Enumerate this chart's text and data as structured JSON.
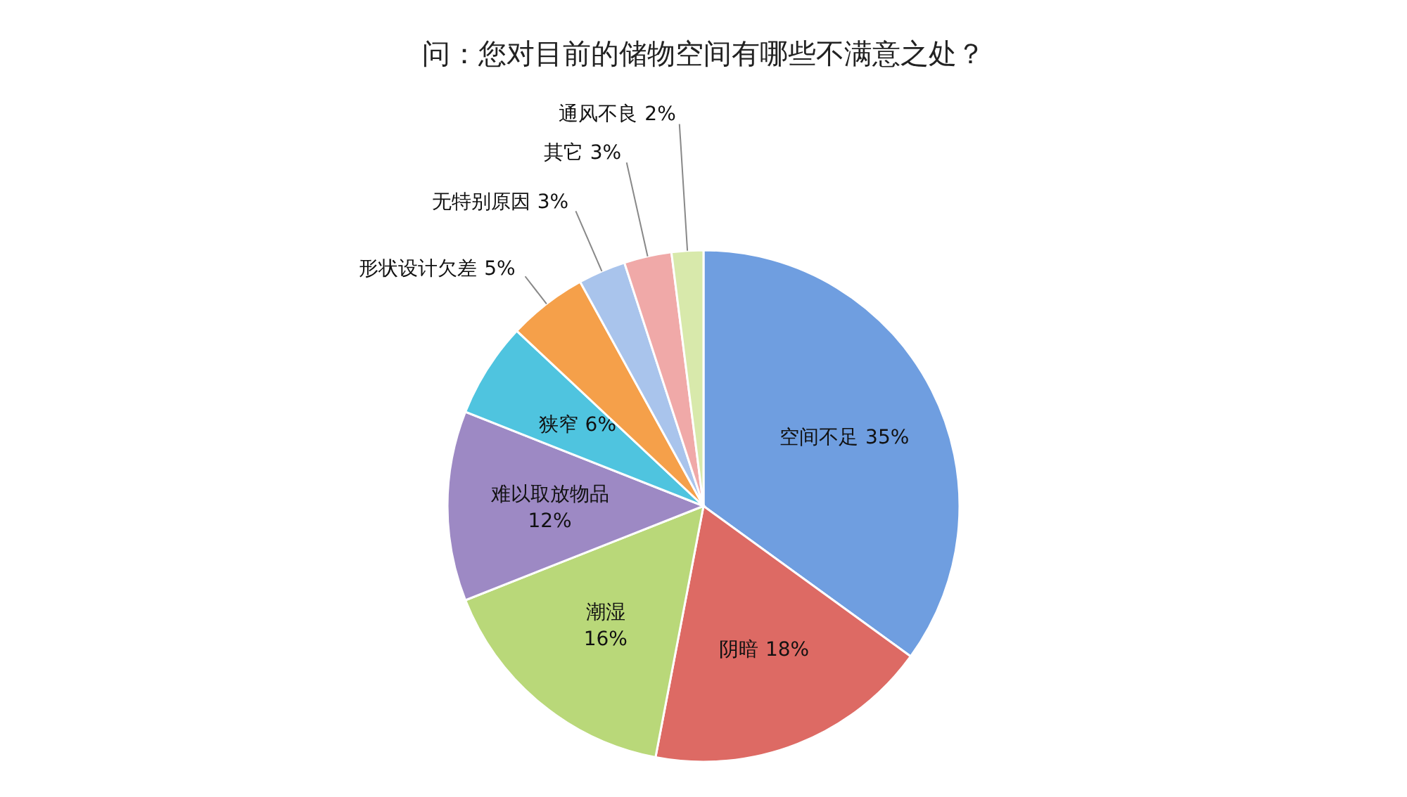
{
  "chart_data": {
    "type": "pie",
    "title": "问：您对目前的储物空间有哪些不满意之处？",
    "categories": [
      "空间不足",
      "阴暗",
      "潮湿",
      "难以取放物品",
      "狭窄",
      "形状设计欠差",
      "无特别原因",
      "其它",
      "通风不良"
    ],
    "values": [
      35,
      18,
      16,
      12,
      6,
      5,
      3,
      3,
      2
    ],
    "colors": [
      "#6f9ee0",
      "#dd6a64",
      "#b9d879",
      "#9d89c4",
      "#4fc4df",
      "#f5a04a",
      "#a9c4ec",
      "#f0a9a8",
      "#d8e9ab"
    ],
    "value_labels": [
      "35%",
      "18%",
      "16%",
      "12%",
      "6%",
      "5%",
      "3%",
      "3%",
      "2%"
    ]
  }
}
